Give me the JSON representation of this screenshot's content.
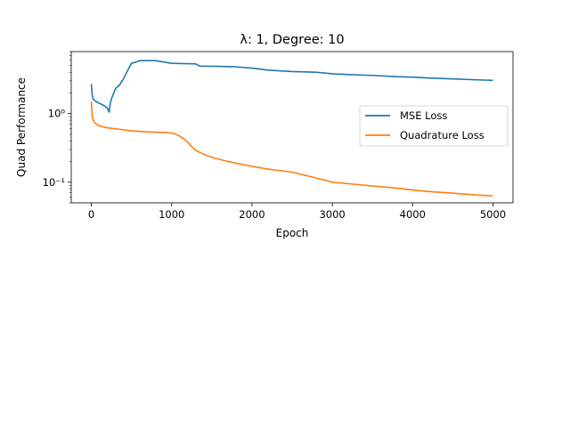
{
  "chart_data": {
    "type": "line",
    "title": "λ: 1, Degree: 10",
    "xlabel": "Epoch",
    "ylabel": "Quad Performance",
    "yscale": "log",
    "xlim": [
      -250,
      5250
    ],
    "ylim": [
      0.05,
      8
    ],
    "x_ticks": [
      0,
      1000,
      2000,
      3000,
      4000,
      5000
    ],
    "x_tick_labels": [
      "0",
      "1000",
      "2000",
      "3000",
      "4000",
      "5000"
    ],
    "y_ticks": [
      0.1,
      1
    ],
    "y_tick_labels": [
      "10⁻¹",
      "10⁰"
    ],
    "grid": false,
    "legend_position": "center-right",
    "series": [
      {
        "name": "MSE Loss",
        "color": "#1f77b4",
        "x": [
          0,
          5,
          10,
          20,
          40,
          80,
          120,
          160,
          200,
          220,
          240,
          260,
          300,
          350,
          400,
          450,
          500,
          550,
          600,
          800,
          1000,
          1300,
          1350,
          1500,
          1800,
          2000,
          2200,
          2500,
          2800,
          3000,
          3200,
          3500,
          3800,
          4000,
          4200,
          4500,
          4800,
          5000
        ],
        "y": [
          2.7,
          2.3,
          1.9,
          1.65,
          1.55,
          1.45,
          1.38,
          1.3,
          1.2,
          1.05,
          1.5,
          1.75,
          2.3,
          2.6,
          3.2,
          4.2,
          5.4,
          5.6,
          5.9,
          5.9,
          5.4,
          5.3,
          4.9,
          4.9,
          4.8,
          4.6,
          4.3,
          4.1,
          4.0,
          3.8,
          3.7,
          3.6,
          3.45,
          3.4,
          3.3,
          3.2,
          3.1,
          3.05
        ]
      },
      {
        "name": "Quadrature Loss",
        "color": "#ff7f0e",
        "x": [
          0,
          5,
          10,
          20,
          40,
          80,
          100,
          150,
          200,
          300,
          400,
          500,
          600,
          700,
          800,
          900,
          1000,
          1050,
          1100,
          1150,
          1200,
          1250,
          1300,
          1400,
          1500,
          1700,
          2000,
          2200,
          2500,
          2800,
          3000,
          3200,
          3500,
          3800,
          4000,
          4200,
          4500,
          4800,
          5000
        ],
        "y": [
          1.5,
          1.2,
          0.95,
          0.82,
          0.74,
          0.68,
          0.66,
          0.64,
          0.62,
          0.6,
          0.58,
          0.56,
          0.55,
          0.54,
          0.535,
          0.53,
          0.52,
          0.5,
          0.47,
          0.43,
          0.38,
          0.33,
          0.29,
          0.255,
          0.23,
          0.2,
          0.17,
          0.155,
          0.14,
          0.115,
          0.1,
          0.095,
          0.088,
          0.082,
          0.077,
          0.073,
          0.069,
          0.065,
          0.063
        ]
      }
    ]
  }
}
